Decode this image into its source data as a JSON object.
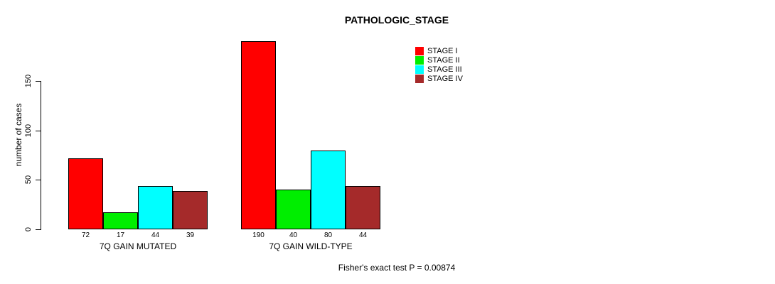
{
  "chart_data": {
    "type": "bar",
    "title": "PATHOLOGIC_STAGE",
    "ylabel": "number of cases",
    "xlabel": "",
    "categories": [
      "7Q GAIN MUTATED",
      "7Q GAIN WILD-TYPE"
    ],
    "series": [
      {
        "name": "STAGE I",
        "color": "#FF0000",
        "values": [
          72,
          190
        ]
      },
      {
        "name": "STAGE II",
        "color": "#00EE00",
        "values": [
          17,
          40
        ]
      },
      {
        "name": "STAGE III",
        "color": "#00FFFF",
        "values": [
          44,
          80
        ]
      },
      {
        "name": "STAGE IV",
        "color": "#A52A2A",
        "values": [
          39,
          44
        ]
      }
    ],
    "yticks": [
      0,
      50,
      100,
      150
    ],
    "ylim": [
      0,
      150
    ],
    "grid": false,
    "bar_value_labels_shown": true,
    "legend_position": "top-right",
    "footnote": "Fisher's exact test P = 0.00874"
  }
}
